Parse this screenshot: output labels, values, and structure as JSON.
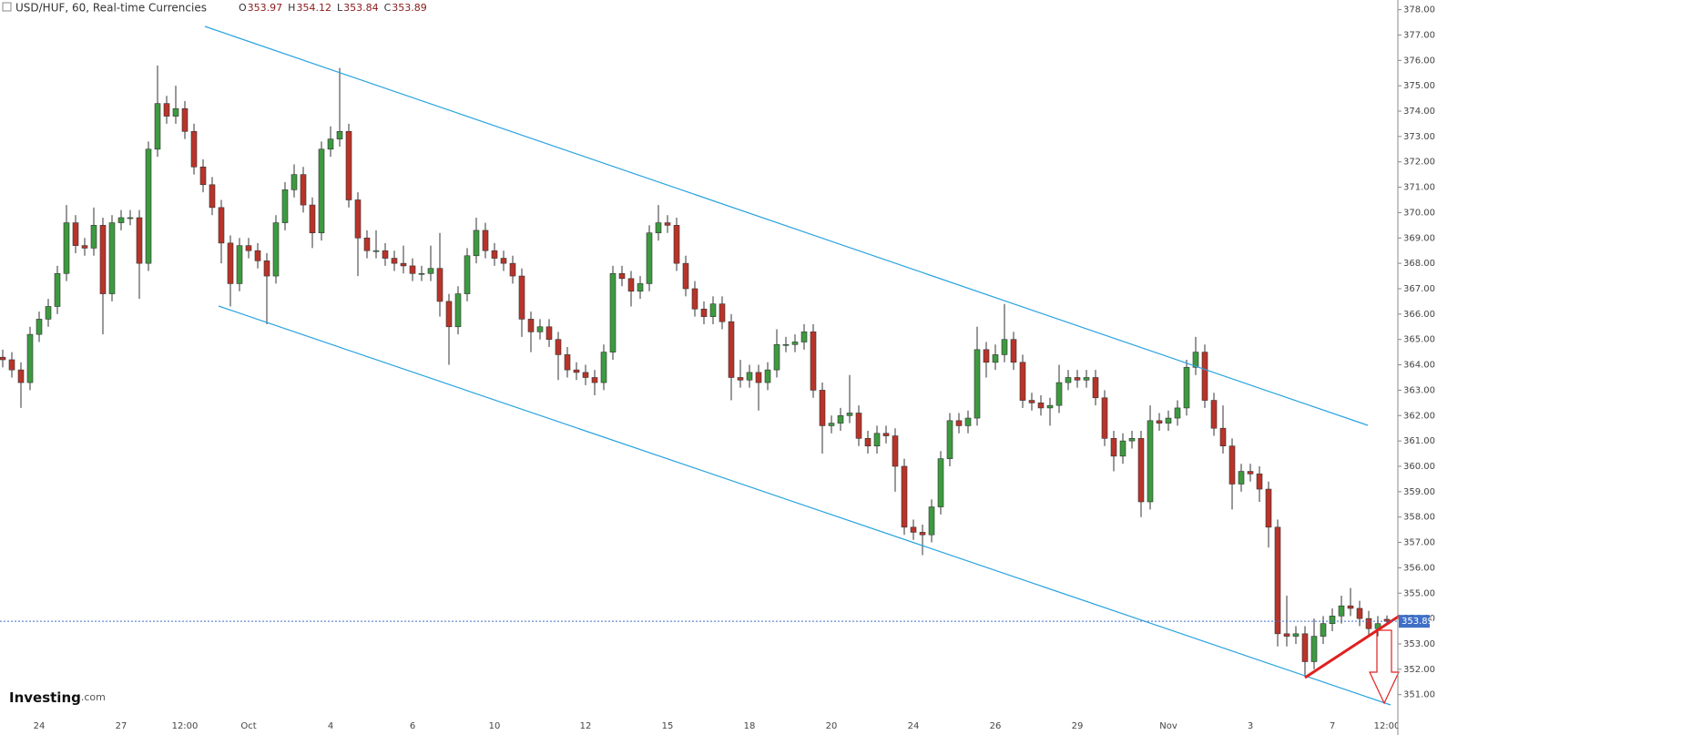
{
  "chart_data": {
    "type": "candlestick",
    "title": "USD/HUF, 60, Real-time Currencies",
    "ohlc_labels": [
      "O",
      "H",
      "L",
      "C"
    ],
    "categories": [
      null,
      null,
      null,
      null,
      "24",
      null,
      null,
      null,
      null,
      null,
      null,
      null,
      null,
      "27",
      null,
      null,
      null,
      null,
      null,
      null,
      "12:00",
      null,
      null,
      null,
      null,
      null,
      null,
      "Oct",
      null,
      null,
      null,
      null,
      null,
      null,
      null,
      null,
      "4",
      null,
      null,
      null,
      null,
      null,
      null,
      null,
      null,
      "6",
      null,
      null,
      null,
      null,
      null,
      null,
      null,
      null,
      "10",
      null,
      null,
      null,
      null,
      null,
      null,
      null,
      null,
      null,
      "12",
      null,
      null,
      null,
      null,
      null,
      null,
      null,
      null,
      "15",
      null,
      null,
      null,
      null,
      null,
      null,
      null,
      null,
      "18",
      null,
      null,
      null,
      null,
      null,
      null,
      null,
      null,
      "20",
      null,
      null,
      null,
      null,
      null,
      null,
      null,
      null,
      "24",
      null,
      null,
      null,
      null,
      null,
      null,
      null,
      null,
      "26",
      null,
      null,
      null,
      null,
      null,
      null,
      null,
      null,
      "29",
      null,
      null,
      null,
      null,
      null,
      null,
      null,
      null,
      null,
      "Nov",
      null,
      null,
      null,
      null,
      null,
      null,
      null,
      null,
      "3",
      null,
      null,
      null,
      null,
      null,
      null,
      null,
      null,
      "7",
      null,
      null,
      null,
      null,
      null,
      "12:00"
    ],
    "open": [
      364.3,
      364.2,
      363.8,
      363.3,
      365.2,
      365.8,
      366.3,
      367.6,
      369.6,
      368.7,
      368.6,
      369.5,
      366.8,
      369.6,
      369.8,
      369.8,
      368.0,
      372.5,
      374.3,
      373.8,
      374.1,
      373.2,
      371.8,
      371.1,
      370.2,
      368.8,
      367.2,
      368.7,
      368.5,
      368.1,
      367.5,
      369.6,
      370.9,
      371.5,
      370.3,
      369.2,
      372.5,
      372.9,
      373.2,
      370.5,
      369.0,
      368.5,
      368.5,
      368.2,
      368.0,
      367.9,
      367.6,
      367.6,
      367.8,
      366.5,
      365.5,
      366.8,
      368.3,
      369.3,
      368.5,
      368.2,
      368.0,
      367.5,
      365.8,
      365.3,
      365.5,
      365.0,
      364.4,
      363.8,
      363.7,
      363.5,
      363.3,
      364.5,
      367.6,
      367.4,
      366.9,
      367.2,
      369.2,
      369.6,
      369.5,
      368.0,
      367.0,
      366.2,
      365.9,
      366.4,
      365.7,
      363.5,
      363.4,
      363.7,
      363.3,
      363.8,
      364.8,
      364.8,
      364.9,
      365.3,
      363.0,
      361.6,
      361.7,
      362.0,
      362.1,
      361.1,
      360.8,
      361.3,
      361.2,
      360.0,
      357.6,
      357.4,
      357.3,
      358.4,
      360.3,
      361.8,
      361.6,
      361.9,
      364.6,
      364.1,
      364.4,
      365.0,
      364.1,
      362.6,
      362.5,
      362.3,
      362.4,
      363.3,
      363.5,
      363.4,
      363.5,
      362.7,
      361.1,
      360.4,
      361.0,
      361.1,
      358.6,
      361.8,
      361.7,
      361.9,
      362.3,
      363.9,
      364.5,
      362.6,
      361.5,
      360.8,
      359.3,
      359.8,
      359.7,
      359.1,
      357.6,
      353.4,
      353.3,
      353.4,
      352.3,
      353.3,
      353.8,
      354.1,
      354.5,
      354.4,
      354.0,
      353.6,
      353.97
    ],
    "high": [
      364.6,
      364.5,
      364.1,
      365.5,
      366.1,
      366.6,
      367.9,
      370.3,
      369.9,
      369.0,
      370.2,
      369.8,
      369.9,
      370.1,
      370.1,
      370.1,
      372.8,
      375.8,
      374.6,
      375.0,
      374.4,
      373.5,
      372.1,
      371.4,
      370.5,
      369.1,
      369.0,
      369.0,
      368.8,
      368.4,
      369.9,
      371.2,
      371.9,
      371.8,
      370.6,
      372.8,
      373.4,
      375.7,
      373.5,
      370.8,
      369.3,
      369.3,
      368.8,
      368.5,
      368.7,
      368.2,
      367.9,
      368.7,
      369.2,
      366.8,
      367.1,
      368.6,
      369.8,
      369.6,
      368.8,
      368.5,
      368.3,
      367.8,
      366.1,
      365.8,
      365.8,
      365.3,
      364.7,
      364.1,
      364.0,
      363.8,
      364.8,
      367.9,
      367.9,
      367.7,
      367.5,
      369.5,
      370.3,
      369.9,
      369.8,
      368.3,
      367.3,
      366.5,
      366.7,
      366.7,
      366.0,
      364.2,
      364.0,
      364.0,
      364.1,
      365.4,
      365.1,
      365.2,
      365.6,
      365.6,
      363.3,
      362.0,
      362.3,
      363.6,
      362.4,
      361.4,
      361.6,
      361.6,
      361.5,
      360.3,
      357.9,
      357.7,
      358.7,
      360.6,
      362.1,
      362.1,
      362.2,
      365.5,
      364.9,
      364.8,
      366.4,
      365.3,
      364.4,
      362.9,
      362.8,
      362.7,
      364.0,
      363.8,
      363.8,
      363.8,
      363.8,
      363.0,
      361.4,
      361.3,
      361.4,
      361.4,
      362.4,
      362.1,
      362.2,
      362.6,
      364.2,
      365.1,
      364.8,
      362.9,
      362.4,
      361.1,
      360.1,
      360.1,
      360.0,
      359.4,
      357.9,
      354.9,
      353.7,
      353.7,
      354.0,
      354.1,
      354.4,
      354.9,
      355.2,
      354.7,
      354.3,
      354.1,
      354.12
    ],
    "low": [
      363.9,
      363.5,
      362.3,
      363.0,
      364.9,
      365.5,
      366.0,
      367.3,
      368.4,
      368.3,
      368.3,
      365.2,
      366.5,
      369.3,
      369.5,
      366.6,
      367.7,
      372.2,
      373.5,
      373.5,
      372.9,
      371.5,
      370.8,
      369.9,
      368.0,
      366.3,
      366.9,
      368.2,
      367.8,
      365.6,
      367.2,
      369.3,
      370.6,
      370.0,
      368.6,
      368.9,
      372.2,
      372.6,
      370.2,
      367.5,
      368.2,
      368.2,
      367.9,
      367.7,
      367.6,
      367.3,
      367.3,
      367.3,
      365.9,
      364.0,
      365.2,
      366.5,
      368.0,
      368.2,
      367.9,
      367.7,
      367.2,
      365.1,
      364.5,
      365.0,
      364.7,
      363.4,
      363.5,
      363.4,
      363.2,
      362.8,
      363.0,
      364.2,
      367.1,
      366.3,
      366.6,
      366.9,
      368.9,
      369.2,
      367.7,
      366.7,
      365.9,
      365.6,
      365.6,
      365.4,
      362.6,
      363.1,
      363.1,
      362.2,
      363.0,
      363.5,
      364.5,
      364.5,
      364.6,
      362.7,
      360.5,
      361.3,
      361.4,
      361.7,
      360.8,
      360.5,
      360.5,
      360.9,
      359.0,
      357.3,
      357.1,
      356.5,
      357.0,
      358.1,
      360.0,
      361.3,
      361.3,
      361.6,
      363.5,
      363.8,
      364.1,
      363.8,
      362.3,
      362.2,
      362.0,
      361.6,
      362.1,
      363.0,
      363.1,
      363.1,
      362.4,
      360.8,
      359.8,
      360.1,
      360.7,
      358.0,
      358.3,
      361.4,
      361.4,
      361.6,
      362.0,
      363.6,
      362.3,
      361.2,
      360.5,
      358.3,
      359.0,
      359.4,
      358.6,
      356.8,
      352.9,
      352.9,
      353.0,
      351.7,
      352.0,
      353.0,
      353.5,
      353.8,
      354.1,
      353.7,
      353.3,
      353.3,
      353.84
    ],
    "close": [
      364.2,
      363.8,
      363.3,
      365.2,
      365.8,
      366.3,
      367.6,
      369.6,
      368.7,
      368.6,
      369.5,
      366.8,
      369.6,
      369.8,
      369.8,
      368.0,
      372.5,
      374.3,
      373.8,
      374.1,
      373.2,
      371.8,
      371.1,
      370.2,
      368.8,
      367.2,
      368.7,
      368.5,
      368.1,
      367.5,
      369.6,
      370.9,
      371.5,
      370.3,
      369.2,
      372.5,
      372.9,
      373.2,
      370.5,
      369.0,
      368.5,
      368.5,
      368.2,
      368.0,
      367.9,
      367.6,
      367.6,
      367.8,
      366.5,
      365.5,
      366.8,
      368.3,
      369.3,
      368.5,
      368.2,
      368.0,
      367.5,
      365.8,
      365.3,
      365.5,
      365.0,
      364.4,
      363.8,
      363.7,
      363.5,
      363.3,
      364.5,
      367.6,
      367.4,
      366.9,
      367.2,
      369.2,
      369.6,
      369.5,
      368.0,
      367.0,
      366.2,
      365.9,
      366.4,
      365.7,
      363.5,
      363.4,
      363.7,
      363.3,
      363.8,
      364.8,
      364.8,
      364.9,
      365.3,
      363.0,
      361.6,
      361.7,
      362.0,
      362.1,
      361.1,
      360.8,
      361.3,
      361.2,
      360.0,
      357.6,
      357.4,
      357.3,
      358.4,
      360.3,
      361.8,
      361.6,
      361.9,
      364.6,
      364.1,
      364.4,
      365.0,
      364.1,
      362.6,
      362.5,
      362.3,
      362.4,
      363.3,
      363.5,
      363.4,
      363.5,
      362.7,
      361.1,
      360.4,
      361.0,
      361.1,
      358.6,
      361.8,
      361.7,
      361.9,
      362.3,
      363.9,
      364.5,
      362.6,
      361.5,
      360.8,
      359.3,
      359.8,
      359.7,
      359.1,
      357.6,
      353.4,
      353.3,
      353.4,
      352.3,
      353.3,
      353.8,
      354.1,
      354.5,
      354.4,
      354.0,
      353.6,
      353.8,
      353.89
    ],
    "up_color": "#3d9a40",
    "down_color": "#b8342a",
    "last_price_color": "#3f6fc7",
    "ylim": [
      350.45,
      378.38
    ],
    "yticks": [
      {
        "value": 351,
        "label": "351.00"
      },
      {
        "value": 352,
        "label": "352.00"
      },
      {
        "value": 353,
        "label": "353.00"
      },
      {
        "value": 354,
        "label": "354.00"
      },
      {
        "value": 355,
        "label": "355.00"
      },
      {
        "value": 356,
        "label": "356.00"
      },
      {
        "value": 357,
        "label": "357.00"
      },
      {
        "value": 358,
        "label": "358.00"
      },
      {
        "value": 359,
        "label": "359.00"
      },
      {
        "value": 360,
        "label": "360.00"
      },
      {
        "value": 361,
        "label": "361.00"
      },
      {
        "value": 362,
        "label": "362.00"
      },
      {
        "value": 363,
        "label": "363.00"
      },
      {
        "value": 364,
        "label": "364.00"
      },
      {
        "value": 365,
        "label": "365.00"
      },
      {
        "value": 366,
        "label": "366.00"
      },
      {
        "value": 367,
        "label": "367.00"
      },
      {
        "value": 368,
        "label": "368.00"
      },
      {
        "value": 369,
        "label": "369.00"
      },
      {
        "value": 370,
        "label": "370.00"
      },
      {
        "value": 371,
        "label": "371.00"
      },
      {
        "value": 372,
        "label": "372.00"
      },
      {
        "value": 373,
        "label": "373.00"
      },
      {
        "value": 374,
        "label": "374.00"
      },
      {
        "value": 375,
        "label": "375.00"
      },
      {
        "value": 376,
        "label": "376.00"
      },
      {
        "value": 377,
        "label": "377.00"
      },
      {
        "value": 378,
        "label": "378.00"
      }
    ]
  },
  "logo": {
    "name": "Investing",
    "suffix": ".com"
  }
}
